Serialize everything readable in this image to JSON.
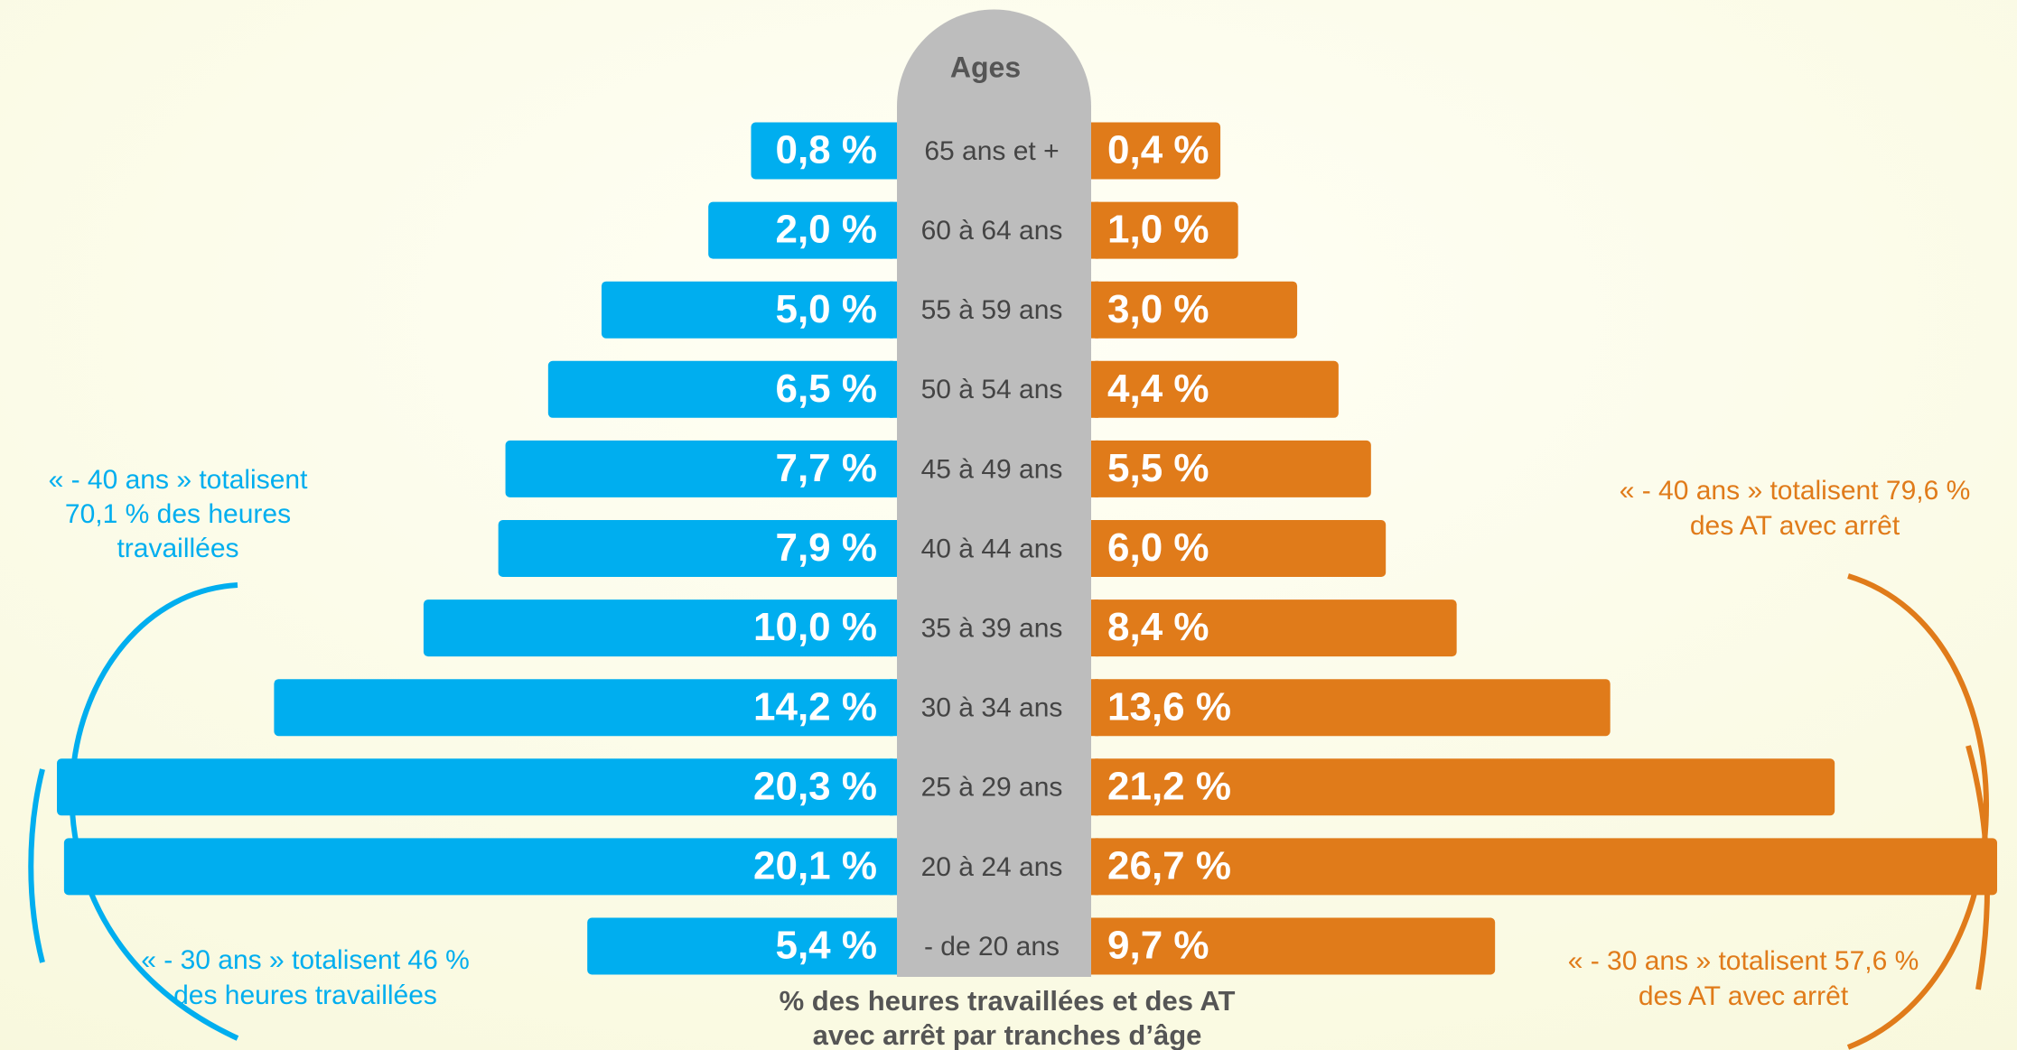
{
  "chart_data": {
    "type": "pyramid",
    "title": "% des heures travaillées et des AT avec arrêt par tranches d’âge",
    "category_header": "Ages",
    "categories": [
      "65 ans et +",
      "60 à 64 ans",
      "55 à 59 ans",
      "50 à 54 ans",
      "45 à 49 ans",
      "40 à 44 ans",
      "35 à 39 ans",
      "30 à 34 ans",
      "25 à 29 ans",
      "20 à 24 ans",
      "- de 20 ans"
    ],
    "series": [
      {
        "name": "heures travaillées",
        "color": "#00aeef",
        "side": "left",
        "values": [
          0.8,
          2.0,
          5.0,
          6.5,
          7.7,
          7.9,
          10.0,
          14.2,
          20.3,
          20.1,
          5.4
        ],
        "value_labels": [
          "0,8 %",
          "2,0 %",
          "5,0 %",
          "6,5 %",
          "7,7 %",
          "7,9 %",
          "10,0 %",
          "14,2 %",
          "20,3 %",
          "20,1 %",
          "5,4 %"
        ]
      },
      {
        "name": "AT avec arrêt",
        "color": "#e07b1a",
        "side": "right",
        "values": [
          0.4,
          1.0,
          3.0,
          4.4,
          5.5,
          6.0,
          8.4,
          13.6,
          21.2,
          26.7,
          9.7
        ],
        "value_labels": [
          "0,4 %",
          "1,0 %",
          "3,0 %",
          "4,4 %",
          "5,5 %",
          "6,0 %",
          "8,4 %",
          "13,6 %",
          "21,2 %",
          "26,7 %",
          "9,7 %"
        ]
      }
    ],
    "annotations": [
      {
        "lines": [
          "« - 40 ans » totalisent",
          "70,1 % des heures",
          "travaillées"
        ],
        "color": "#00aeef"
      },
      {
        "lines": [
          "« - 30 ans » totalisent 46 %",
          "des heures travaillées"
        ],
        "color": "#00aeef"
      },
      {
        "lines": [
          "« - 40 ans » totalisent 79,6 %",
          "des AT avec arrêt"
        ],
        "color": "#e07b1a"
      },
      {
        "lines": [
          "« - 30 ans » totalisent 57,6 %",
          "des AT avec arrêt"
        ],
        "color": "#e07b1a"
      }
    ]
  }
}
